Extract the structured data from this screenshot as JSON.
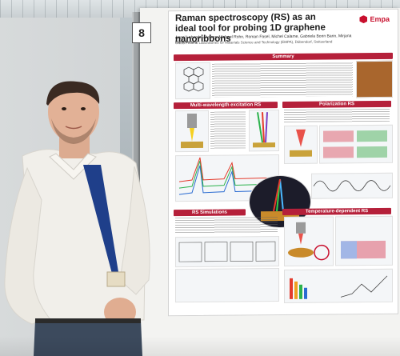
{
  "booth": {
    "number": "8"
  },
  "poster": {
    "title": "Raman spectroscopy (RS) as an ideal tool for probing 1D graphene nanoribbons",
    "authors": "Angel Labordet Alvarez, Michael Rohn, Roman Fasel, Michel Calame, Gabriela Borin Barin, Mirjana Dimitrievska*",
    "affiliation": "Swiss Federal Laboratories for Materials Science and Technology (EMPA), Dübendorf, Switzerland",
    "logo_text": "Empa",
    "sections": {
      "summary": "Summary",
      "multi": "Multi-wavelength excitation RS",
      "polarization": "Polarization RS",
      "simulations": "RS Simulations",
      "temperature": "Temperature-dependent RS"
    }
  },
  "colors": {
    "accent": "#b5203a",
    "logo": "#c8102e",
    "shirt": "#f1efea",
    "lanyard": "#1f3f8a"
  }
}
